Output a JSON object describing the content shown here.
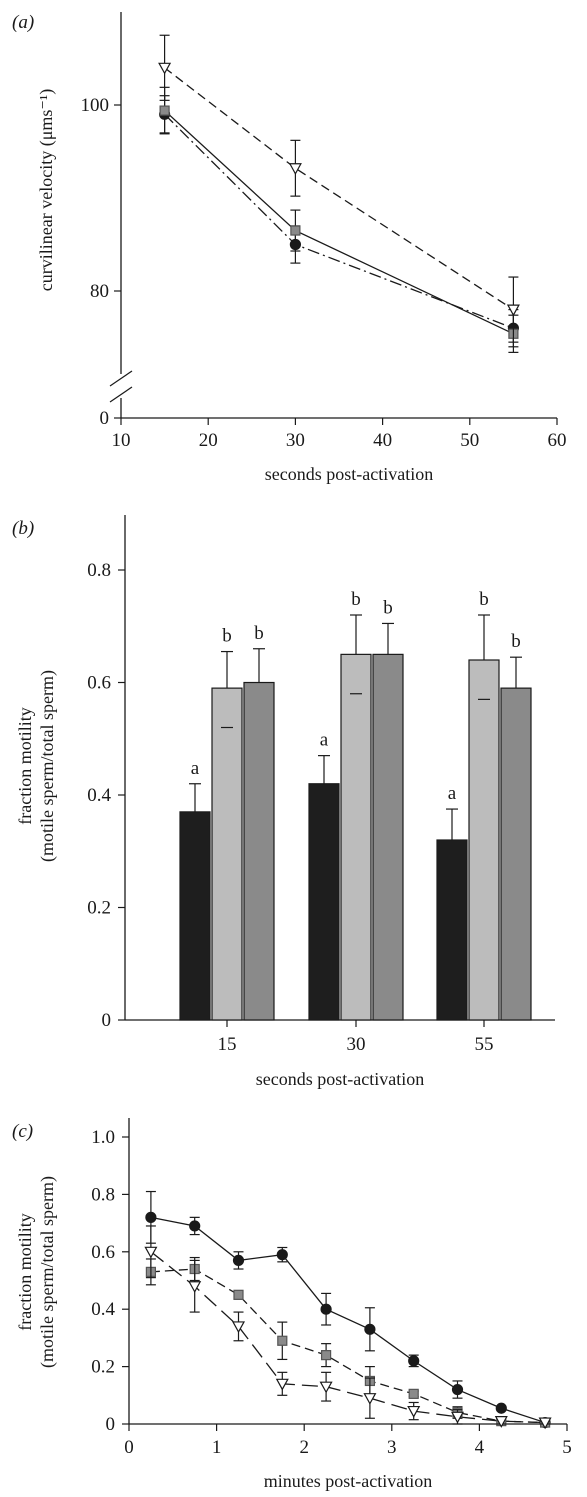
{
  "colors": {
    "axis": "#1a1a1a",
    "circle_series": "#1a1a1a",
    "square_series": "#8a8a8a",
    "triangle_series": "#ffffff",
    "bar_black": "#1e1e1e",
    "bar_light": "#bcbcbc",
    "bar_dark": "#8a8a8a"
  },
  "chart_data": [
    {
      "panel": "(a)",
      "type": "line",
      "xlabel": "seconds post-activation",
      "ylabel": "curvilinear velocity (μms⁻¹)",
      "xlim": [
        10,
        60
      ],
      "xticks": [
        "10",
        "20",
        "30",
        "40",
        "50",
        "60"
      ],
      "ylim": [
        70,
        110
      ],
      "yticks": [
        "80",
        "100"
      ],
      "axis_break": true,
      "zero_label": "0",
      "grid": false,
      "series": [
        {
          "marker": "circle",
          "line": "dash-dot",
          "x": [
            15,
            30,
            55
          ],
          "y": [
            99.0,
            85.0,
            76.0
          ],
          "err": [
            2.0,
            2.0,
            2.0
          ]
        },
        {
          "marker": "square",
          "line": "solid",
          "x": [
            15,
            30,
            55
          ],
          "y": [
            99.4,
            86.5,
            75.4
          ],
          "err": [
            2.5,
            2.2,
            2.0
          ]
        },
        {
          "marker": "triangle",
          "line": "dash",
          "x": [
            15,
            30,
            55
          ],
          "y": [
            104.0,
            93.2,
            78.0
          ],
          "err": [
            3.5,
            3.0,
            3.5
          ]
        }
      ]
    },
    {
      "panel": "(b)",
      "type": "bar",
      "xlabel": "seconds post-activation",
      "ylabel": "fraction motility\n(motile sperm/total sperm)",
      "categories": [
        "15",
        "30",
        "55"
      ],
      "ylim": [
        0,
        0.9
      ],
      "yticks": [
        "0",
        "0.2",
        "0.4",
        "0.6",
        "0.8"
      ],
      "grid": false,
      "series": [
        {
          "fill": "black",
          "values": [
            0.37,
            0.42,
            0.32
          ],
          "err": [
            0.05,
            0.05,
            0.055
          ],
          "letters": [
            "a",
            "a",
            "a"
          ]
        },
        {
          "fill": "light-grey",
          "values": [
            0.59,
            0.65,
            0.64
          ],
          "err": [
            0.065,
            0.07,
            0.08
          ],
          "letters": [
            "b",
            "b",
            "b"
          ],
          "inner_err": [
            0.07,
            0.07,
            0.07
          ]
        },
        {
          "fill": "dark-grey",
          "values": [
            0.6,
            0.65,
            0.59
          ],
          "err": [
            0.06,
            0.055,
            0.055
          ],
          "letters": [
            "b",
            "b",
            "b"
          ]
        }
      ]
    },
    {
      "panel": "(c)",
      "type": "line",
      "xlabel": "minutes post-activation",
      "ylabel": "fraction motility\n(motile sperm/total sperm)",
      "xlim": [
        0,
        5
      ],
      "xticks": [
        "0",
        "1",
        "2",
        "3",
        "4",
        "5"
      ],
      "ylim": [
        0,
        1.0
      ],
      "yticks": [
        "0",
        "0.2",
        "0.4",
        "0.6",
        "0.8",
        "1.0"
      ],
      "grid": false,
      "series": [
        {
          "marker": "circle",
          "line": "solid",
          "x": [
            0.25,
            0.75,
            1.25,
            1.75,
            2.25,
            2.75,
            3.25,
            3.75,
            4.25,
            4.75
          ],
          "y": [
            0.72,
            0.69,
            0.57,
            0.59,
            0.4,
            0.33,
            0.22,
            0.12,
            0.055,
            0.005
          ],
          "err": [
            0.09,
            0.03,
            0.03,
            0.025,
            0.055,
            0.075,
            0.02,
            0.03,
            0.005,
            0.01
          ]
        },
        {
          "marker": "square",
          "line": "dash",
          "x": [
            0.25,
            0.75,
            1.25,
            1.75,
            2.25,
            2.75,
            3.25,
            3.75,
            4.25,
            4.75
          ],
          "y": [
            0.53,
            0.54,
            0.45,
            0.29,
            0.24,
            0.15,
            0.105,
            0.04,
            0.01,
            0.005
          ],
          "err": [
            0.045,
            0.04,
            0.015,
            0.065,
            0.04,
            0.05,
            0.01,
            0.02,
            0.01,
            0.005
          ]
        },
        {
          "marker": "triangle",
          "line": "long-dash",
          "x": [
            0.25,
            0.75,
            1.25,
            1.75,
            2.25,
            2.75,
            3.25,
            3.75,
            4.25,
            4.75
          ],
          "y": [
            0.6,
            0.48,
            0.34,
            0.14,
            0.13,
            0.09,
            0.045,
            0.025,
            0.01,
            0.005
          ],
          "err": [
            0.09,
            0.09,
            0.05,
            0.04,
            0.05,
            0.07,
            0.03,
            0.025,
            0.01,
            0.005
          ]
        }
      ]
    }
  ]
}
